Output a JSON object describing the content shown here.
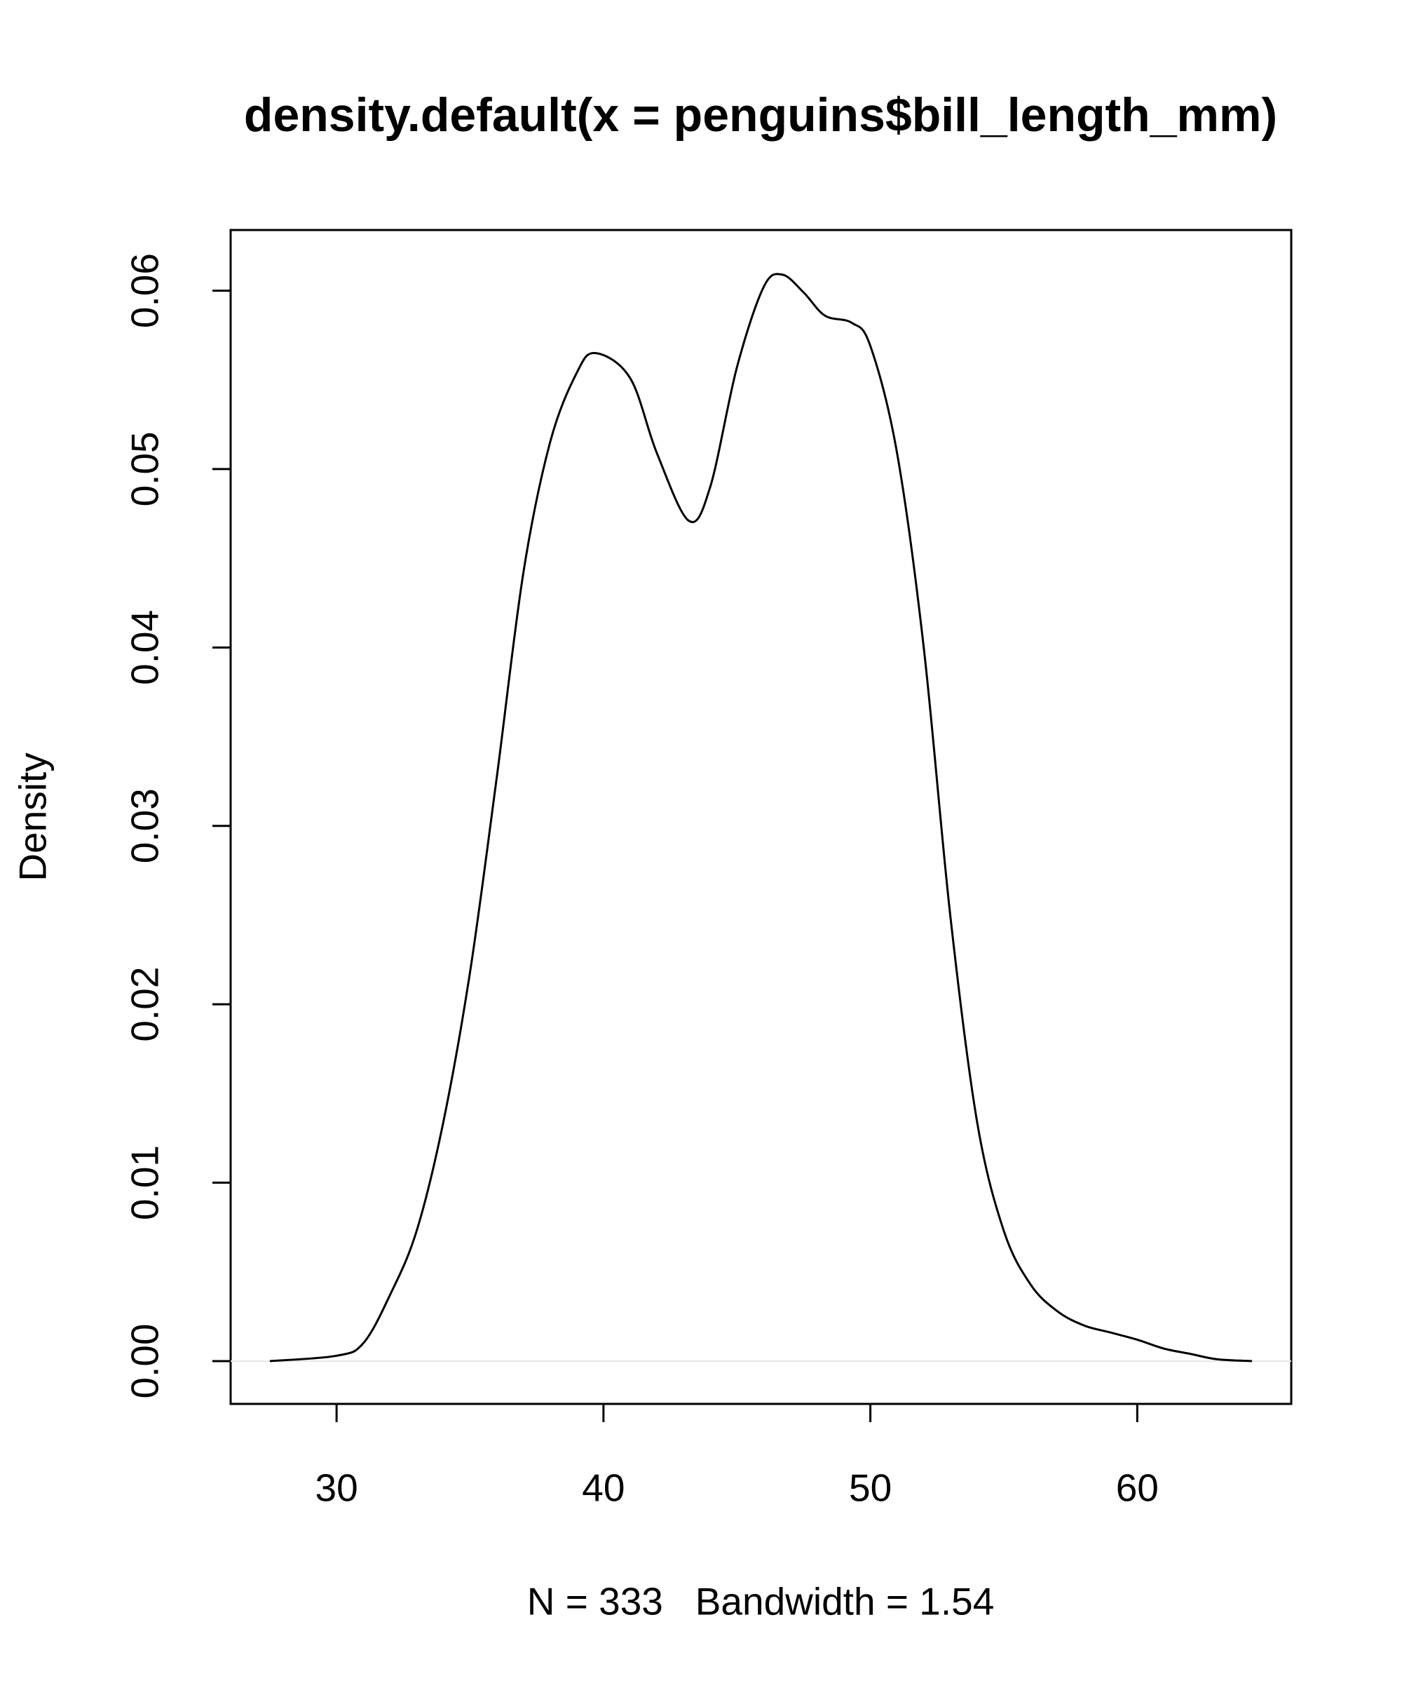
{
  "chart_data": {
    "type": "line",
    "title": "density.default(x = penguins$bill_length_mm)",
    "y_label": "Density",
    "x_label": "N = 333   Bandwidth = 1.54",
    "x": [
      27.5,
      30,
      31,
      32,
      33,
      34,
      35,
      36,
      37,
      38,
      39,
      39.7,
      41,
      42,
      43.2,
      44,
      45,
      46,
      46.7,
      47.5,
      48.3,
      49.3,
      50,
      51,
      52,
      53,
      54,
      55,
      56,
      57,
      58,
      59,
      60,
      61,
      62,
      63,
      64.3
    ],
    "series": [
      {
        "color": "#000000",
        "values": [
          0,
          0.0003,
          0.001,
          0.0037,
          0.0073,
          0.0134,
          0.0218,
          0.0327,
          0.0442,
          0.0515,
          0.0554,
          0.0565,
          0.0551,
          0.0509,
          0.0471,
          0.049,
          0.0557,
          0.0602,
          0.0609,
          0.0599,
          0.0586,
          0.0582,
          0.0569,
          0.0509,
          0.04,
          0.0249,
          0.0134,
          0.0073,
          0.0043,
          0.0028,
          0.002,
          0.0016,
          0.0012,
          0.0007,
          0.0004,
          0.0001,
          0
        ]
      }
    ],
    "xlim": [
      26.03,
      65.77
    ],
    "ylim": [
      -0.0024,
      0.0634
    ],
    "xticks": [
      30,
      40,
      50,
      60
    ],
    "yticks": [
      {
        "value": 0,
        "label": "0.00"
      },
      0.01,
      0.02,
      0.03,
      0.04,
      0.05,
      0.06
    ],
    "zero_line": true,
    "zero_line_color": "#e6e6e6"
  }
}
